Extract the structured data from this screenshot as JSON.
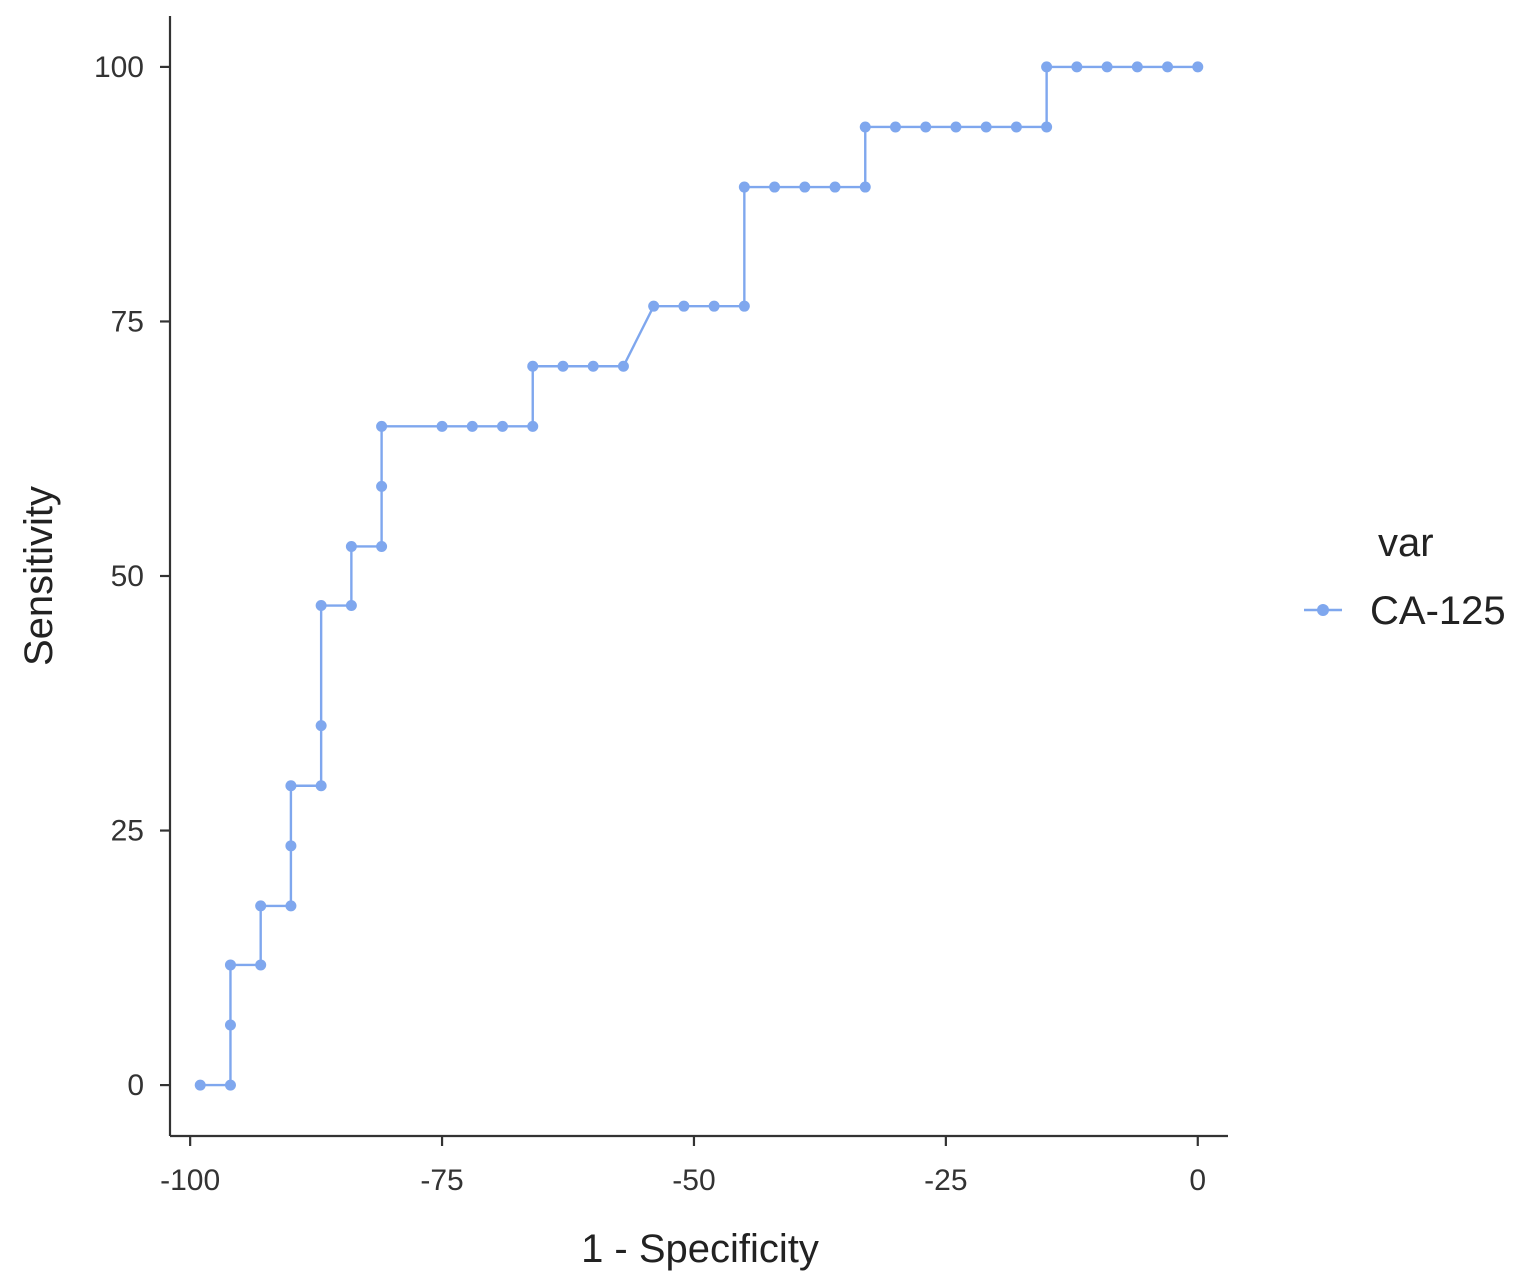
{
  "chart_data": {
    "type": "line",
    "title": "",
    "xlabel": "1 - Specificity",
    "ylabel": "Sensitivity",
    "xlim": [
      -102,
      3
    ],
    "ylim": [
      -5,
      105
    ],
    "xticks": [
      -100,
      -75,
      -50,
      -25,
      0
    ],
    "yticks": [
      0,
      25,
      50,
      75,
      100
    ],
    "xtick_labels": [
      "-100",
      "-75",
      "-50",
      "-25",
      "0"
    ],
    "ytick_labels": [
      "0",
      "25",
      "50",
      "75",
      "100"
    ],
    "grid": false,
    "legend": {
      "title": "var",
      "position": "right"
    },
    "series": [
      {
        "name": "CA-125",
        "color": "#7fa7ee",
        "points": [
          [
            -99,
            0
          ],
          [
            -96,
            0
          ],
          [
            -96,
            5.9
          ],
          [
            -96,
            11.8
          ],
          [
            -93,
            11.8
          ],
          [
            -93,
            17.6
          ],
          [
            -90,
            17.6
          ],
          [
            -90,
            23.5
          ],
          [
            -90,
            29.4
          ],
          [
            -87,
            29.4
          ],
          [
            -87,
            35.3
          ],
          [
            -87,
            47.1
          ],
          [
            -84,
            47.1
          ],
          [
            -84,
            52.9
          ],
          [
            -81,
            52.9
          ],
          [
            -81,
            58.8
          ],
          [
            -81,
            64.7
          ],
          [
            -75,
            64.7
          ],
          [
            -72,
            64.7
          ],
          [
            -69,
            64.7
          ],
          [
            -66,
            64.7
          ],
          [
            -66,
            70.6
          ],
          [
            -63,
            70.6
          ],
          [
            -60,
            70.6
          ],
          [
            -57,
            70.6
          ],
          [
            -54,
            76.5
          ],
          [
            -51,
            76.5
          ],
          [
            -48,
            76.5
          ],
          [
            -45,
            76.5
          ],
          [
            -45,
            88.2
          ],
          [
            -42,
            88.2
          ],
          [
            -39,
            88.2
          ],
          [
            -36,
            88.2
          ],
          [
            -33,
            88.2
          ],
          [
            -33,
            94.1
          ],
          [
            -30,
            94.1
          ],
          [
            -27,
            94.1
          ],
          [
            -24,
            94.1
          ],
          [
            -21,
            94.1
          ],
          [
            -18,
            94.1
          ],
          [
            -15,
            94.1
          ],
          [
            -15,
            100
          ],
          [
            -12,
            100
          ],
          [
            -9,
            100
          ],
          [
            -6,
            100
          ],
          [
            -3,
            100
          ],
          [
            0,
            100
          ]
        ]
      }
    ]
  }
}
